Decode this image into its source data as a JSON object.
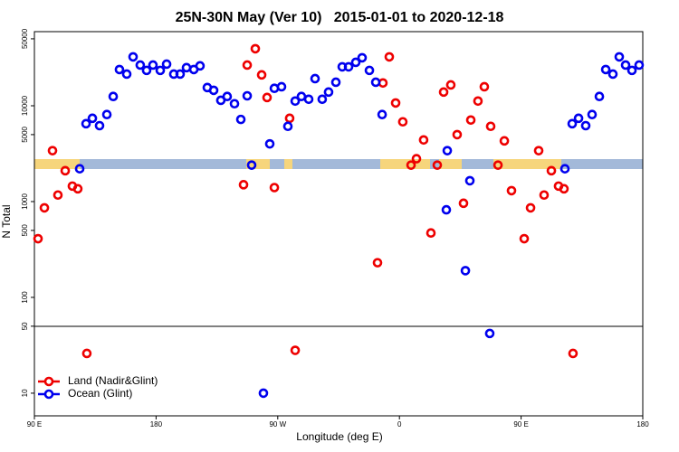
{
  "chart_data": {
    "type": "scatter",
    "title": "25N-30N May (Ver 10)   2015-01-01 to 2020-12-18",
    "x_label": "Longitude (deg E)",
    "y_label": "N Total",
    "log_y": true,
    "legend": "bottom-left",
    "xlim": [
      90,
      540
    ],
    "xticks": [
      {
        "value": 90,
        "label": "90 E"
      },
      180,
      {
        "value": 270,
        "label": "90 W"
      },
      {
        "value": 360,
        "label": "0"
      },
      {
        "value": 450,
        "label": "90 E"
      },
      {
        "value": 540,
        "label": "180"
      }
    ],
    "ylim": [
      5.8,
      59400
    ],
    "yticks": [
      10,
      50,
      100,
      500,
      1000,
      5000,
      10000,
      50000
    ],
    "series": [
      {
        "name": "Land (Nadir&Glint)",
        "color": "#ee0000",
        "x": [
          92.7,
          97.4,
          103.4,
          107.4,
          112.8,
          118.1,
          122.1,
          128.8,
          244.7,
          247.4,
          253.4,
          258.1,
          262.1,
          267.5,
          278.8,
          282.9,
          343.8,
          347.8,
          352.5,
          357.2,
          362.5,
          368.6,
          372.6,
          377.9,
          383.3,
          388,
          392.7,
          398,
          402.7,
          407.4,
          412.8,
          418.1,
          422.8,
          427.5,
          432.9,
          437.6,
          442.9,
          452.3,
          457,
          463,
          467,
          472.4,
          477.7,
          481.7,
          488.4
        ],
        "values": [
          410,
          860,
          3400,
          1170,
          2100,
          1450,
          1360,
          26,
          1500,
          26600,
          39400,
          21000,
          12200,
          1400,
          7400,
          28,
          230,
          17300,
          32400,
          10700,
          6800,
          2400,
          2800,
          4400,
          470,
          2400,
          13900,
          16500,
          5000,
          960,
          7100,
          11200,
          15800,
          6100,
          2400,
          4300,
          1300,
          410,
          860,
          3400,
          1170,
          2100,
          1450,
          1360,
          26
        ]
      },
      {
        "name": "Ocean (Glint)",
        "color": "#0000ee",
        "x": [
          123.5,
          128.2,
          132.9,
          138.2,
          143.6,
          148.3,
          152.9,
          158.3,
          163,
          168.3,
          173,
          177.7,
          183.1,
          187.8,
          193.1,
          197.8,
          202.5,
          207.9,
          212.5,
          217.9,
          222.6,
          227.9,
          232.6,
          238,
          242.7,
          247.4,
          250.7,
          259.4,
          264.1,
          267.5,
          272.8,
          277.5,
          282.9,
          287.5,
          292.9,
          297.6,
          302.9,
          307.6,
          313,
          317.7,
          322.4,
          327.7,
          332.4,
          337.8,
          342.5,
          347.2,
          394.7,
          395.4,
          408.8,
          412.1,
          426.8,
          482.4,
          487.8,
          492.5,
          497.8,
          502.5,
          507.9,
          512.6,
          517.9,
          522.6,
          527.3,
          532,
          537.3
        ],
        "values": [
          2200,
          6500,
          7400,
          6200,
          8100,
          12500,
          23900,
          21400,
          32400,
          26600,
          23400,
          26600,
          23400,
          27200,
          21400,
          21400,
          25000,
          23900,
          26100,
          15500,
          14500,
          11400,
          12500,
          10500,
          7200,
          12700,
          2400,
          10,
          4000,
          15200,
          15800,
          6100,
          11200,
          12500,
          11700,
          19200,
          11700,
          13900,
          17600,
          25500,
          25500,
          28400,
          31700,
          23400,
          17600,
          8100,
          820,
          3400,
          190,
          1650,
          42,
          2200,
          6500,
          7400,
          6200,
          8100,
          12500,
          23900,
          21400,
          32400,
          26600,
          23400,
          26600
        ]
      }
    ]
  }
}
